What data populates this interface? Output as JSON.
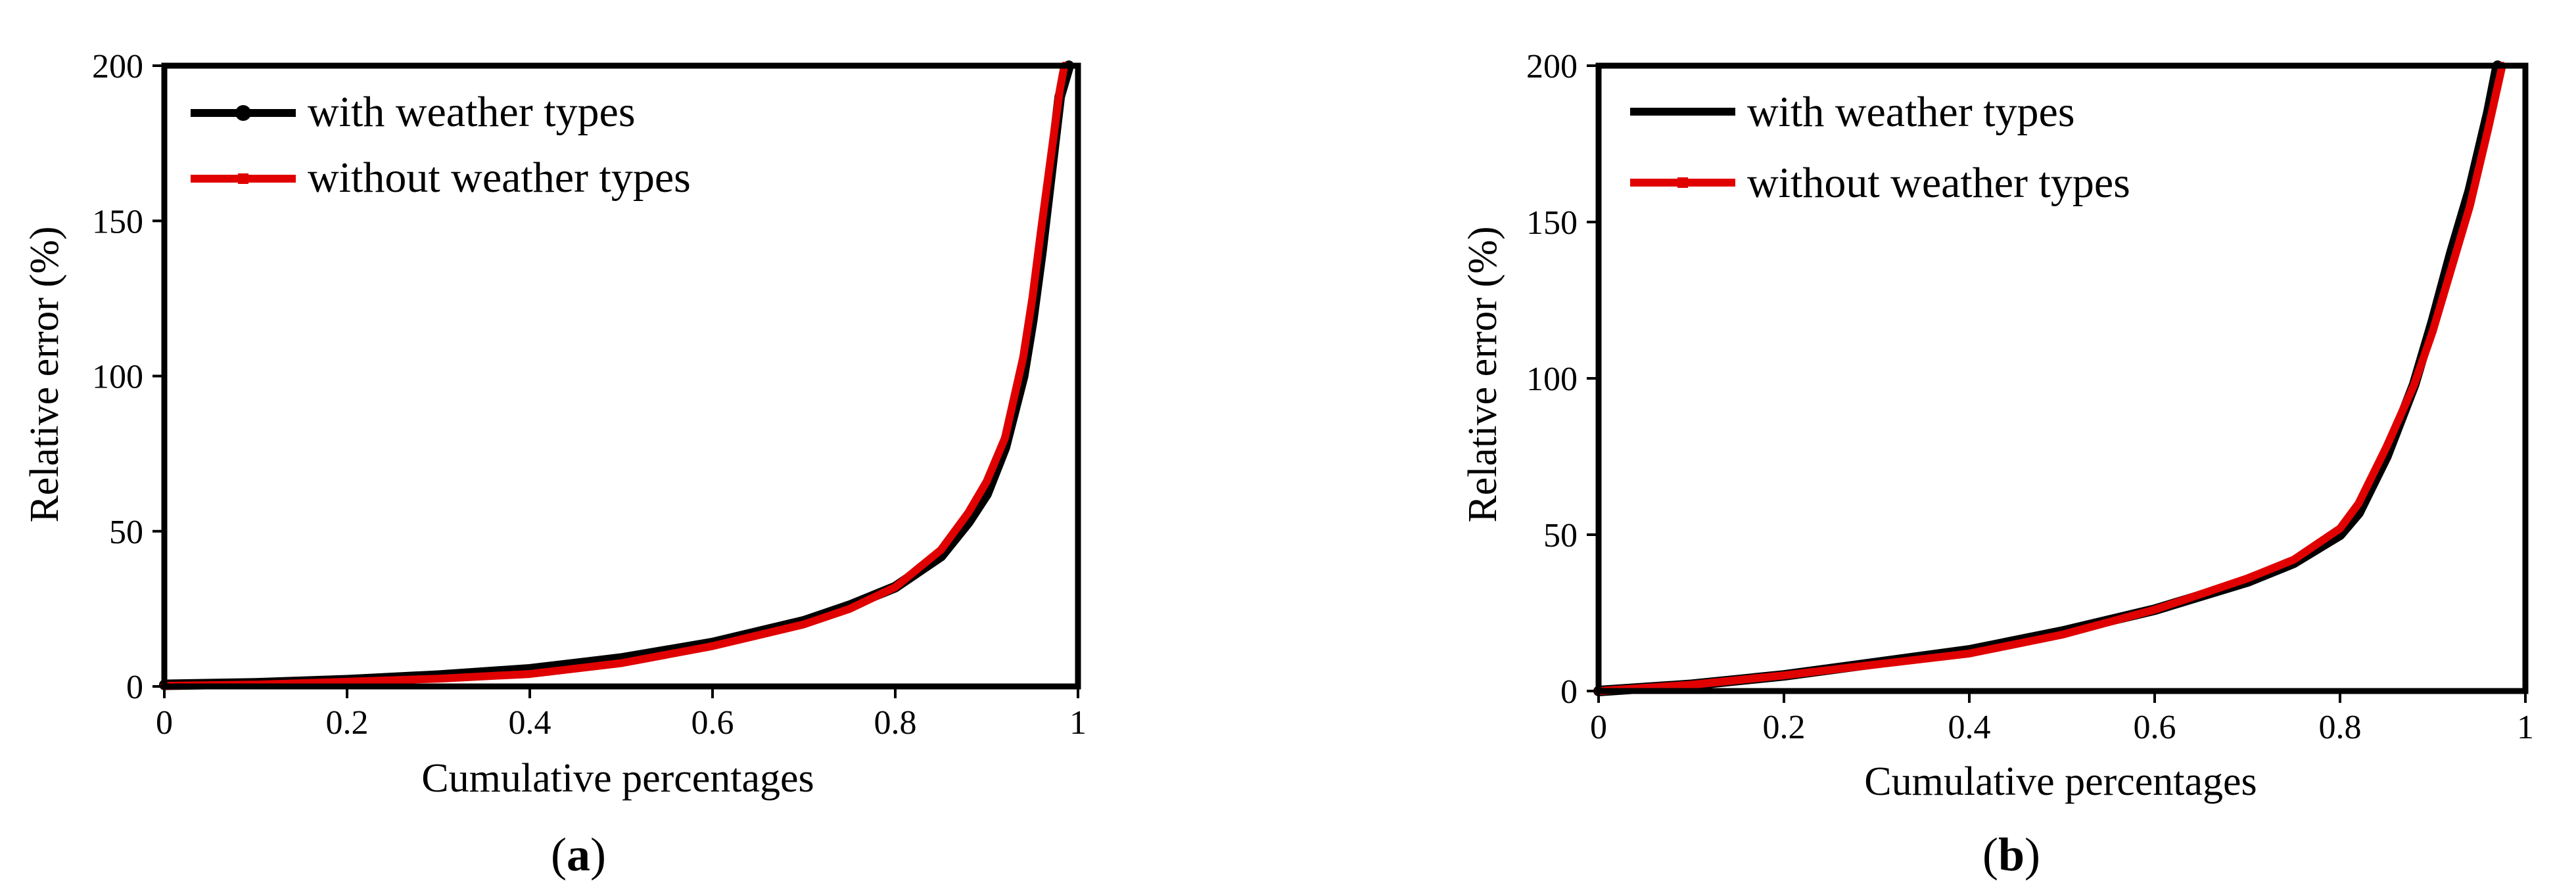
{
  "colors": {
    "with": "#000000",
    "without": "#e00000",
    "axis": "#000000"
  },
  "panels": [
    {
      "label": "a",
      "xlabel": "Cumulative percentages",
      "ylabel": "Relative error (%)",
      "x_ticks": [
        "0",
        "0.2",
        "0.4",
        "0.6",
        "0.8",
        "1"
      ],
      "y_ticks": [
        "0",
        "50",
        "100",
        "150",
        "200"
      ],
      "legend": [
        "with weather types",
        "without weather types"
      ]
    },
    {
      "label": "b",
      "xlabel": "Cumulative percentages",
      "ylabel": "Relative error (%)",
      "x_ticks": [
        "0",
        "0.2",
        "0.4",
        "0.6",
        "0.8",
        "1"
      ],
      "y_ticks": [
        "0",
        "50",
        "100",
        "150",
        "200"
      ],
      "legend": [
        "with weather types",
        "without weather types"
      ]
    }
  ],
  "chart_data": [
    {
      "type": "line",
      "panel": "a",
      "xlabel": "Cumulative percentages",
      "ylabel": "Relative error (%)",
      "xlim": [
        0,
        1
      ],
      "ylim": [
        0,
        200
      ],
      "legend_position": "top-left",
      "series": [
        {
          "name": "with weather types",
          "color": "#000000",
          "x": [
            0,
            0.1,
            0.2,
            0.3,
            0.4,
            0.5,
            0.6,
            0.7,
            0.75,
            0.8,
            0.85,
            0.88,
            0.9,
            0.92,
            0.94,
            0.95,
            0.96,
            0.97,
            0.98,
            0.99
          ],
          "y": [
            0.5,
            1,
            2,
            3.5,
            5.5,
            9,
            14,
            21,
            26,
            32,
            42,
            53,
            62,
            77,
            100,
            118,
            140,
            165,
            190,
            200
          ]
        },
        {
          "name": "without weather types",
          "color": "#e00000",
          "x": [
            0,
            0.1,
            0.2,
            0.3,
            0.4,
            0.5,
            0.6,
            0.7,
            0.75,
            0.8,
            0.85,
            0.88,
            0.9,
            0.92,
            0.94,
            0.95,
            0.96,
            0.97,
            0.98,
            0.985
          ],
          "y": [
            0.2,
            0.6,
            1.5,
            2.5,
            4,
            7.5,
            13,
            20,
            25,
            32,
            44,
            56,
            66,
            80,
            106,
            125,
            148,
            170,
            192,
            200
          ]
        }
      ]
    },
    {
      "type": "line",
      "panel": "b",
      "xlabel": "Cumulative percentages",
      "ylabel": "Relative error (%)",
      "xlim": [
        0,
        1
      ],
      "ylim": [
        0,
        200
      ],
      "legend_position": "top-left",
      "series": [
        {
          "name": "with weather types",
          "color": "#000000",
          "x": [
            0,
            0.1,
            0.2,
            0.3,
            0.4,
            0.5,
            0.6,
            0.7,
            0.75,
            0.8,
            0.82,
            0.85,
            0.88,
            0.9,
            0.92,
            0.94,
            0.96,
            0.97
          ],
          "y": [
            0,
            2,
            5,
            9,
            13,
            19,
            26,
            35,
            41,
            50,
            57,
            75,
            98,
            118,
            140,
            160,
            185,
            200
          ]
        },
        {
          "name": "without weather types",
          "color": "#e00000",
          "x": [
            0,
            0.1,
            0.2,
            0.3,
            0.4,
            0.5,
            0.6,
            0.7,
            0.75,
            0.8,
            0.82,
            0.85,
            0.88,
            0.9,
            0.92,
            0.94,
            0.96,
            0.975
          ],
          "y": [
            0,
            2,
            5,
            8.5,
            12,
            18,
            26,
            36,
            42,
            52,
            60,
            78,
            98,
            115,
            135,
            155,
            180,
            200
          ]
        }
      ]
    }
  ]
}
